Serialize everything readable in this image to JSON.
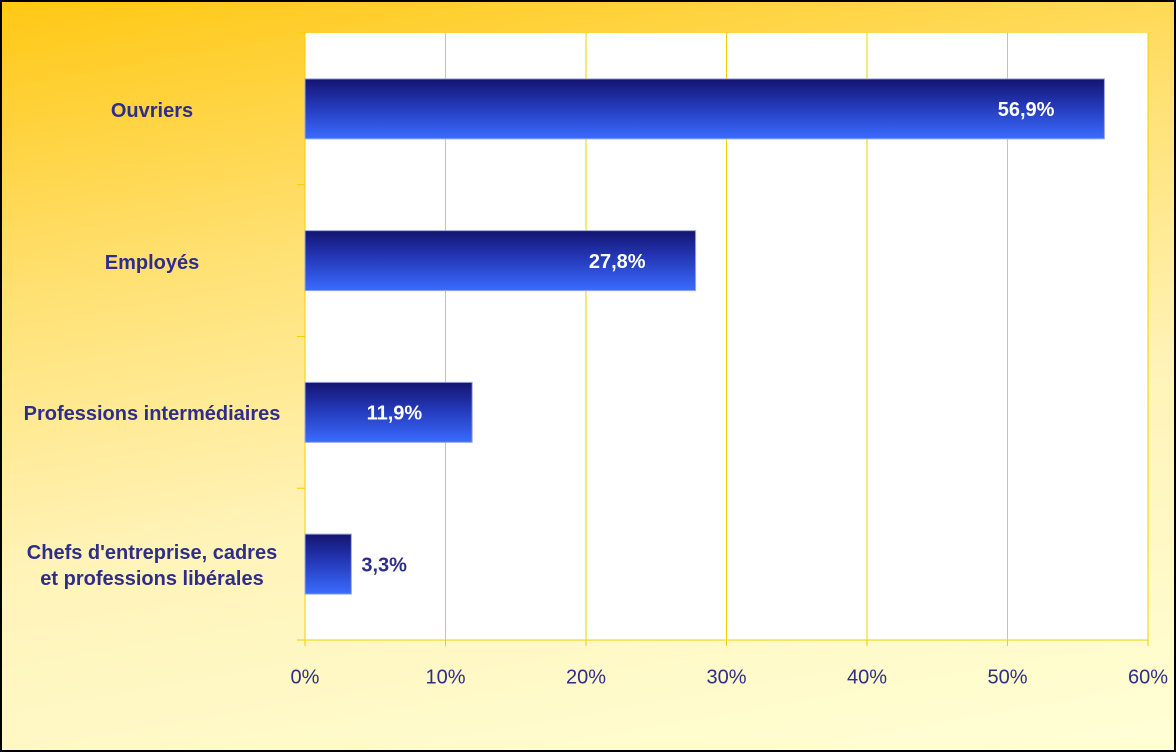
{
  "chart_data": {
    "type": "bar",
    "orientation": "horizontal",
    "categories": [
      "Ouvriers",
      "Employés",
      "Professions intermédiaires",
      "Chefs d'entreprise, cadres et professions libérales"
    ],
    "values": [
      56.9,
      27.8,
      11.9,
      3.3
    ],
    "value_labels": [
      "56,9%",
      "27,8%",
      "11,9%",
      "3,3%"
    ],
    "color": "#3366ff",
    "xlim": [
      0,
      60
    ],
    "xticks": [
      {
        "value": 0,
        "label": "0%"
      },
      {
        "value": 10,
        "label": "10%"
      },
      {
        "value": 20,
        "label": "20%"
      },
      {
        "value": 30,
        "label": "30%"
      },
      {
        "value": 40,
        "label": "40%"
      },
      {
        "value": 50,
        "label": "50%"
      },
      {
        "value": 60,
        "label": "60%"
      }
    ],
    "grid": true
  }
}
